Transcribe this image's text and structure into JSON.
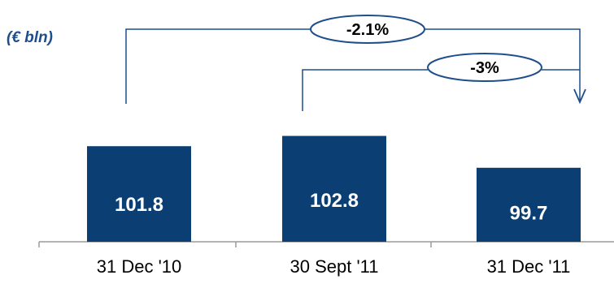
{
  "chart_data": {
    "type": "bar",
    "unit_label": "(€ bln)",
    "categories": [
      "31 Dec '10",
      "30 Sept '11",
      "31 Dec '11"
    ],
    "values": [
      101.8,
      102.8,
      99.7
    ],
    "value_labels": [
      "101.8",
      "102.8",
      "99.7"
    ],
    "annotations": [
      {
        "label": "-2.1%",
        "from": "31 Dec '10",
        "to": "31 Dec '11"
      },
      {
        "label": "-3%",
        "from": "30 Sept '11",
        "to": "31 Dec '11"
      }
    ],
    "grid": false,
    "legend": "none",
    "colors": {
      "bar": "#0b3f73",
      "bar_text": "#ffffff",
      "annotation": "#1f4e8c",
      "unit_label": "#1f4e8c",
      "axis": "#9a9a9a",
      "text": "#000000"
    }
  }
}
